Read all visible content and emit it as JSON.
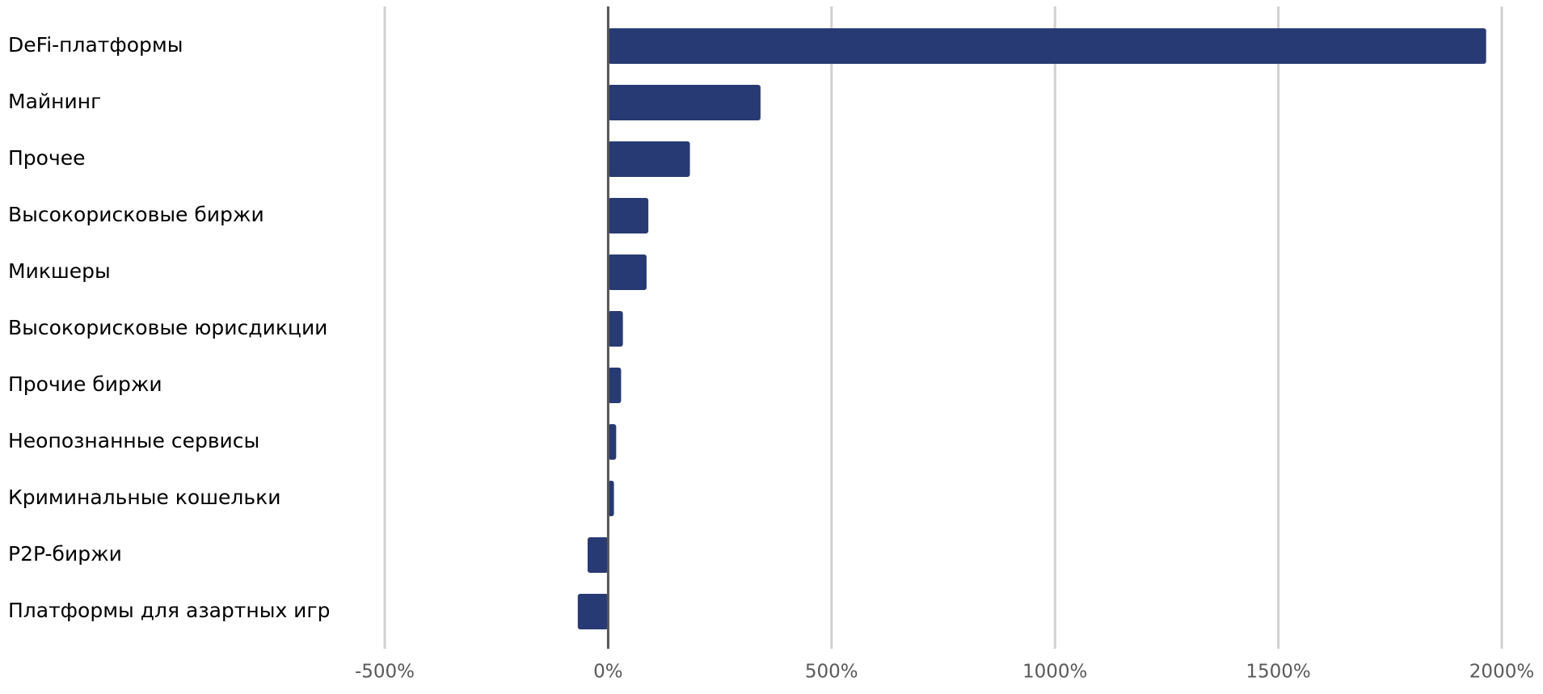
{
  "chart_data": {
    "type": "barh",
    "categories": [
      "DeFi-платформы",
      "Майнинг",
      "Прочее",
      "Высокорисковые биржи",
      "Микшеры",
      "Высокорисковые юрисдикции",
      "Прочие биржи",
      "Неопознанные сервисы",
      "Криминальные кошельки",
      "P2P-биржи",
      "Платформы для азартных игр"
    ],
    "values": [
      1965,
      341,
      183,
      90,
      86,
      33,
      29,
      18,
      13,
      -46,
      -68
    ],
    "color": "#283a73",
    "xlim": [
      -500,
      2000
    ],
    "xticks": [
      {
        "value": -500,
        "label": "-500%"
      },
      {
        "value": 0,
        "label": "0%"
      },
      {
        "value": 500,
        "label": "500%"
      },
      {
        "value": 1000,
        "label": "1000%"
      },
      {
        "value": 1500,
        "label": "1500%"
      },
      {
        "value": 2000,
        "label": "2000%"
      }
    ],
    "grid": true
  }
}
